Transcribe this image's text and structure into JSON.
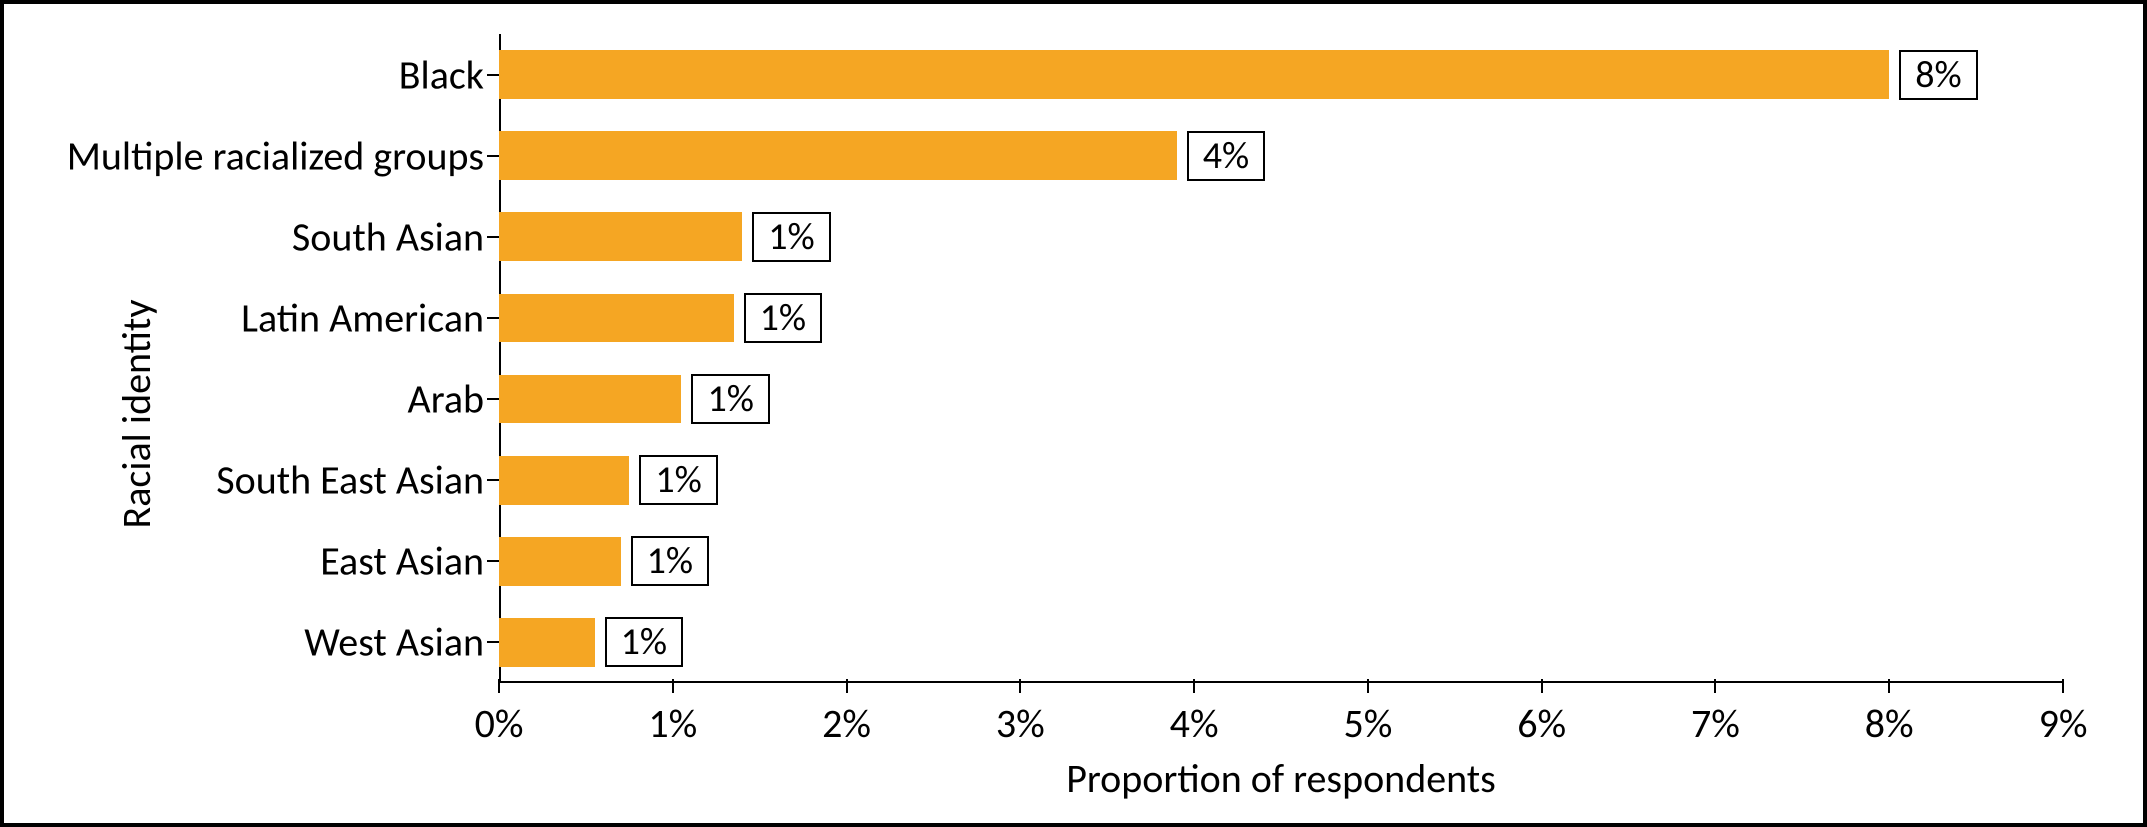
{
  "chart": {
    "type": "bar-horizontal",
    "y_axis_title": "Racial identity",
    "x_axis_title": "Proportion of respondents",
    "bar_color": "#f5a623",
    "bar_border_color": "#000000",
    "bar_border_width": 0,
    "background_color": "#ffffff",
    "border_color": "#000000",
    "font_family": "Calibri, Arial, sans-serif",
    "label_fontsize": 40,
    "tick_fontsize": 40,
    "data_label_fontsize": 38,
    "xlim": [
      0,
      9
    ],
    "xtick_step": 1,
    "xtick_format_suffix": "%",
    "categories": [
      "Black",
      "Multiple racialized groups",
      "South Asian",
      "Latin American",
      "Arab",
      "South East Asian",
      "East Asian",
      "West Asian"
    ],
    "values": [
      8.0,
      3.9,
      1.4,
      1.35,
      1.05,
      0.75,
      0.7,
      0.55
    ],
    "value_labels": [
      "8%",
      "4%",
      "1%",
      "1%",
      "1%",
      "1%",
      "1%",
      "1%"
    ],
    "data_label_box_border": "#000000",
    "data_label_box_bg": "#ffffff"
  }
}
